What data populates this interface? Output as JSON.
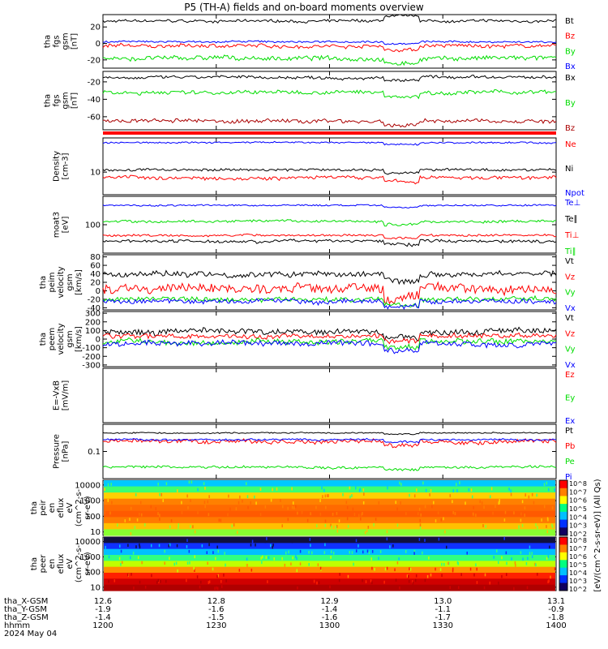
{
  "title": "P5 (TH-A) fields and on-board moments overview",
  "chart_data": {
    "type": "line",
    "panels": [
      {
        "ylabel": [
          "tha",
          "fgs",
          "gsm",
          "[nT]"
        ],
        "yticks": [
          "20",
          "0",
          "-20"
        ],
        "ylim": [
          -30,
          35
        ],
        "series": [
          {
            "name": "Bt",
            "color": "#000000",
            "level": 27,
            "amp": 3
          },
          {
            "name": "Bz",
            "color": "#ff0000",
            "level": -3,
            "amp": 4
          },
          {
            "name": "By",
            "color": "#00dd00",
            "level": -18,
            "amp": 5
          },
          {
            "name": "Bx",
            "color": "#0000ff",
            "level": 2,
            "amp": 2
          }
        ]
      },
      {
        "ylabel": [
          "tha",
          "fgs",
          "gsm",
          "[nT]"
        ],
        "yticks": [
          "-20",
          "-40",
          "-60"
        ],
        "ylim": [
          -75,
          -8
        ],
        "series": [
          {
            "name": "Bx",
            "color": "#000000",
            "level": -15,
            "amp": 3
          },
          {
            "name": "By",
            "color": "#00dd00",
            "level": -32,
            "amp": 4
          },
          {
            "name": "Bz",
            "color": "#aa0000",
            "level": -65,
            "amp": 4
          }
        ]
      },
      {
        "ylabel": [
          "Density",
          "[cm-3]"
        ],
        "yticks": [
          "10"
        ],
        "ylim": [
          4,
          40
        ],
        "series": [
          {
            "name": "Ne",
            "color": "#ff0000",
            "level": 8,
            "amp": 1
          },
          {
            "name": "Ni",
            "color": "#000000",
            "level": 11,
            "amp": 1
          },
          {
            "name": "Npot",
            "color": "#0000ff",
            "level": 33,
            "amp": 2
          }
        ]
      },
      {
        "ylabel": [
          "moat3",
          "[eV]"
        ],
        "yticks": [
          "100"
        ],
        "ylim": [
          20,
          500
        ],
        "series": [
          {
            "name": "Te⊥",
            "color": "#0000ff",
            "level": 300,
            "amp": 25
          },
          {
            "name": "Te∥",
            "color": "#000000",
            "level": 40,
            "amp": 6
          },
          {
            "name": "Ti⊥",
            "color": "#ff0000",
            "level": 55,
            "amp": 6
          },
          {
            "name": "Ti∥",
            "color": "#00dd00",
            "level": 120,
            "amp": 15
          }
        ]
      },
      {
        "ylabel": [
          "tha",
          "peim",
          "velocity",
          "gsm",
          "[km/s]"
        ],
        "yticks": [
          "80",
          "60",
          "40",
          "20",
          "0",
          "-20",
          "-40"
        ],
        "ylim": [
          -45,
          85
        ],
        "series": [
          {
            "name": "Vt",
            "color": "#000000",
            "level": 40,
            "amp": 12
          },
          {
            "name": "Vz",
            "color": "#ff0000",
            "level": 5,
            "amp": 20
          },
          {
            "name": "Vy",
            "color": "#00dd00",
            "level": -20,
            "amp": 10
          },
          {
            "name": "Vx",
            "color": "#0000ff",
            "level": -25,
            "amp": 10
          }
        ]
      },
      {
        "ylabel": [
          "tha",
          "peem",
          "velocity",
          "gsm",
          "[km/s]"
        ],
        "yticks": [
          "300",
          "200",
          "100",
          "0",
          "-100",
          "-200",
          "-300"
        ],
        "ylim": [
          -320,
          320
        ],
        "series": [
          {
            "name": "Vt",
            "color": "#000000",
            "level": 90,
            "amp": 60
          },
          {
            "name": "Vz",
            "color": "#ff0000",
            "level": 40,
            "amp": 50
          },
          {
            "name": "Vy",
            "color": "#00dd00",
            "level": -30,
            "amp": 60
          },
          {
            "name": "Vx",
            "color": "#0000ff",
            "level": -50,
            "amp": 60
          }
        ]
      },
      {
        "ylabel": [
          "E=-VxB",
          "[mV/m]"
        ],
        "yticks": [],
        "ylim": [
          -1,
          1
        ],
        "series": [
          {
            "name": "Ez",
            "color": "#ff0000"
          },
          {
            "name": "Ey",
            "color": "#00dd00"
          },
          {
            "name": "Ex",
            "color": "#0000ff"
          }
        ]
      },
      {
        "ylabel": [
          "Pressure",
          "[nPa]"
        ],
        "yticks": [
          "0.1"
        ],
        "ylim": [
          0.02,
          0.5
        ],
        "series": [
          {
            "name": "Pt",
            "color": "#000000",
            "level": 0.3,
            "amp": 0.02
          },
          {
            "name": "Pb",
            "color": "#ff0000",
            "level": 0.18,
            "amp": 0.04
          },
          {
            "name": "Pe",
            "color": "#00dd00",
            "level": 0.04,
            "amp": 0.005
          },
          {
            "name": "Pi",
            "color": "#0000ff",
            "level": 0.2,
            "amp": 0.02
          }
        ]
      },
      {
        "ylabel": [
          "tha",
          "peir",
          "en",
          "eflux",
          "eV",
          "(cm^2-s-",
          "sr-eV)"
        ],
        "yticks": [
          "10000",
          "1000",
          "100",
          "10"
        ],
        "ylim": [
          6,
          20000
        ],
        "spectrogram": true
      },
      {
        "ylabel": [
          "tha",
          "peer",
          "en",
          "eflux",
          "eV",
          "(cm^2-s-",
          "sr-eV)"
        ],
        "yticks": [
          "10000",
          "1000",
          "100",
          "10"
        ],
        "ylim": [
          6,
          20000
        ],
        "spectrogram": true
      }
    ],
    "colorbar": {
      "label": "[eV/(cm^2-s-sr-eV)] (All Qs)",
      "ticks": [
        "10^8",
        "10^7",
        "10^6",
        "10^5",
        "10^4",
        "10^3",
        "10^2"
      ]
    },
    "xaxis": {
      "rows": [
        {
          "label": "tha_X-GSM",
          "values": [
            "12.6",
            "12.8",
            "12.9",
            "13.0",
            "13.1"
          ]
        },
        {
          "label": "tha_Y-GSM",
          "values": [
            "-1.9",
            "-1.6",
            "-1.4",
            "-1.1",
            "-0.9"
          ]
        },
        {
          "label": "tha_Z-GSM",
          "values": [
            "-1.4",
            "-1.5",
            "-1.6",
            "-1.7",
            "-1.8"
          ]
        },
        {
          "label": "hhmm",
          "values": [
            "1200",
            "1230",
            "1300",
            "1330",
            "1400"
          ]
        }
      ],
      "date": "2024 May 04"
    }
  }
}
